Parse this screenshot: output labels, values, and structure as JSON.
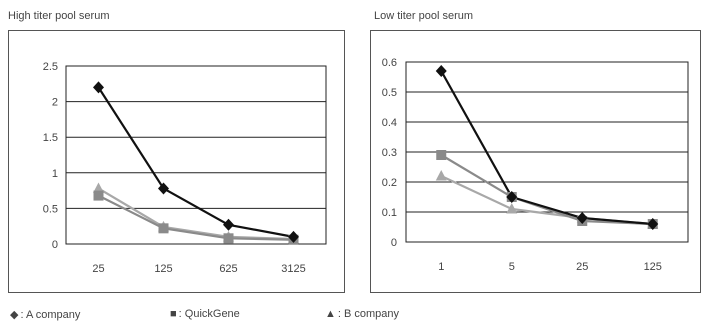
{
  "chart_data": [
    {
      "type": "line",
      "title": "High titer pool serum",
      "categories": [
        "25",
        "125",
        "625",
        "3125"
      ],
      "ylim": [
        0,
        2.5
      ],
      "yticks": [
        "0",
        "0.5",
        "1",
        "1.5",
        "2",
        "2.5"
      ],
      "grid": true,
      "series": [
        {
          "name": "A company",
          "marker": "diamond",
          "color": "#111111",
          "values": [
            2.2,
            0.78,
            0.27,
            0.1
          ]
        },
        {
          "name": "QuickGene",
          "marker": "square",
          "color": "#8a8a8a",
          "values": [
            0.68,
            0.22,
            0.08,
            0.06
          ]
        },
        {
          "name": "B company",
          "marker": "triangle",
          "color": "#a8a8a8",
          "values": [
            0.78,
            0.24,
            0.1,
            0.07
          ]
        }
      ]
    },
    {
      "type": "line",
      "title": "Low titer pool serum",
      "categories": [
        "1",
        "5",
        "25",
        "125"
      ],
      "ylim": [
        0,
        0.6
      ],
      "yticks": [
        "0",
        "0.1",
        "0.2",
        "0.3",
        "0.4",
        "0.5",
        "0.6"
      ],
      "grid": true,
      "series": [
        {
          "name": "A company",
          "marker": "diamond",
          "color": "#111111",
          "values": [
            0.57,
            0.15,
            0.08,
            0.06
          ]
        },
        {
          "name": "QuickGene",
          "marker": "square",
          "color": "#8a8a8a",
          "values": [
            0.29,
            0.15,
            0.07,
            0.06
          ]
        },
        {
          "name": "B company",
          "marker": "triangle",
          "color": "#a8a8a8",
          "values": [
            0.22,
            0.11,
            0.08,
            0.06
          ]
        }
      ]
    }
  ],
  "legend": [
    {
      "label": ": A company",
      "symbol": "◆"
    },
    {
      "label": ": QuickGene",
      "symbol": "■"
    },
    {
      "label": ": B company",
      "symbol": "▲"
    }
  ]
}
